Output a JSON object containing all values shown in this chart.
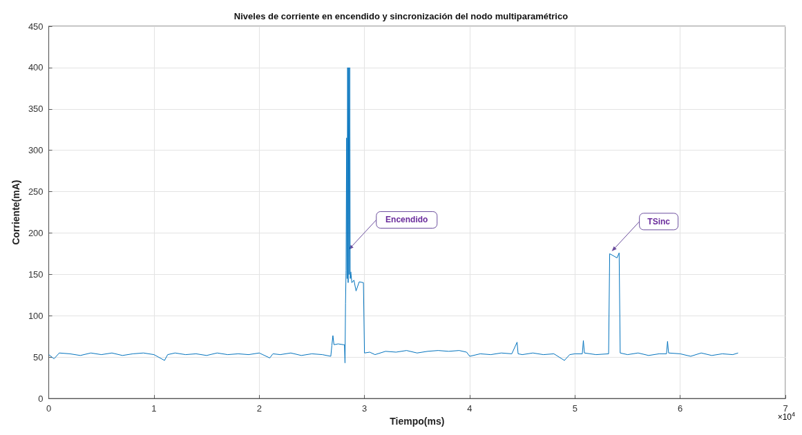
{
  "chart_data": {
    "type": "line",
    "title": "Niveles de corriente en encendido y sincronización del nodo multiparamétrico",
    "xlabel": "Tiempo(ms)",
    "ylabel": "Corriente(mA)",
    "xlim": [
      0,
      7
    ],
    "xticks": [
      0,
      1,
      2,
      3,
      4,
      5,
      6,
      7
    ],
    "ylim": [
      0,
      450
    ],
    "yticks": [
      0,
      50,
      100,
      150,
      200,
      250,
      300,
      350,
      400,
      450
    ],
    "grid": true,
    "annotations": [
      "×10$^{4}$",
      {
        "text": "Encendido",
        "x": 2.85,
        "y": 180
      },
      {
        "text": "TSinc",
        "x": 5.35,
        "y": 178
      }
    ],
    "series": [
      {
        "color": "#0072bd",
        "x": [
          0,
          0.05,
          0.1,
          0.2,
          0.3,
          0.4,
          0.5,
          0.6,
          0.7,
          0.8,
          0.9,
          1,
          1.1,
          1.13,
          1.2,
          1.3,
          1.4,
          1.5,
          1.6,
          1.7,
          1.8,
          1.9,
          2,
          2.1,
          2.13,
          2.2,
          2.3,
          2.4,
          2.5,
          2.6,
          2.68,
          2.69,
          2.7,
          2.71,
          2.75,
          2.8,
          2.81,
          2.815,
          2.82,
          2.825,
          2.83,
          2.835,
          2.84,
          2.845,
          2.85,
          2.855,
          2.86,
          2.865,
          2.87,
          2.88,
          2.9,
          2.92,
          2.95,
          2.99,
          3,
          3.05,
          3.1,
          3.2,
          3.3,
          3.4,
          3.5,
          3.6,
          3.7,
          3.8,
          3.9,
          3.97,
          4,
          4.1,
          4.2,
          4.3,
          4.4,
          4.45,
          4.46,
          4.5,
          4.6,
          4.7,
          4.8,
          4.9,
          4.95,
          5,
          5.07,
          5.08,
          5.09,
          5.2,
          5.32,
          5.33,
          5.4,
          5.42,
          5.43,
          5.5,
          5.6,
          5.7,
          5.8,
          5.87,
          5.88,
          5.89,
          6,
          6.1,
          6.2,
          6.3,
          6.4,
          6.5,
          6.55
        ],
        "values": [
          53,
          48,
          55,
          54,
          52,
          55,
          53,
          55,
          52,
          54,
          55,
          53,
          46,
          53,
          55,
          53,
          54,
          52,
          55,
          53,
          54,
          53,
          55,
          49,
          54,
          53,
          55,
          52,
          54,
          53,
          51,
          64,
          76,
          65,
          66,
          65,
          65,
          43,
          115,
          155,
          315,
          145,
          400,
          140,
          400,
          150,
          400,
          145,
          153,
          140,
          143,
          130,
          141,
          140,
          55,
          56,
          53,
          57,
          56,
          58,
          55,
          57,
          58,
          57,
          58,
          56,
          51,
          54,
          53,
          55,
          54,
          68,
          54,
          53,
          55,
          53,
          54,
          46,
          53,
          54,
          54,
          70,
          55,
          53,
          54,
          175,
          170,
          176,
          55,
          53,
          55,
          52,
          54,
          54,
          69,
          55,
          54,
          51,
          55,
          52,
          54,
          53,
          55
        ]
      }
    ]
  }
}
